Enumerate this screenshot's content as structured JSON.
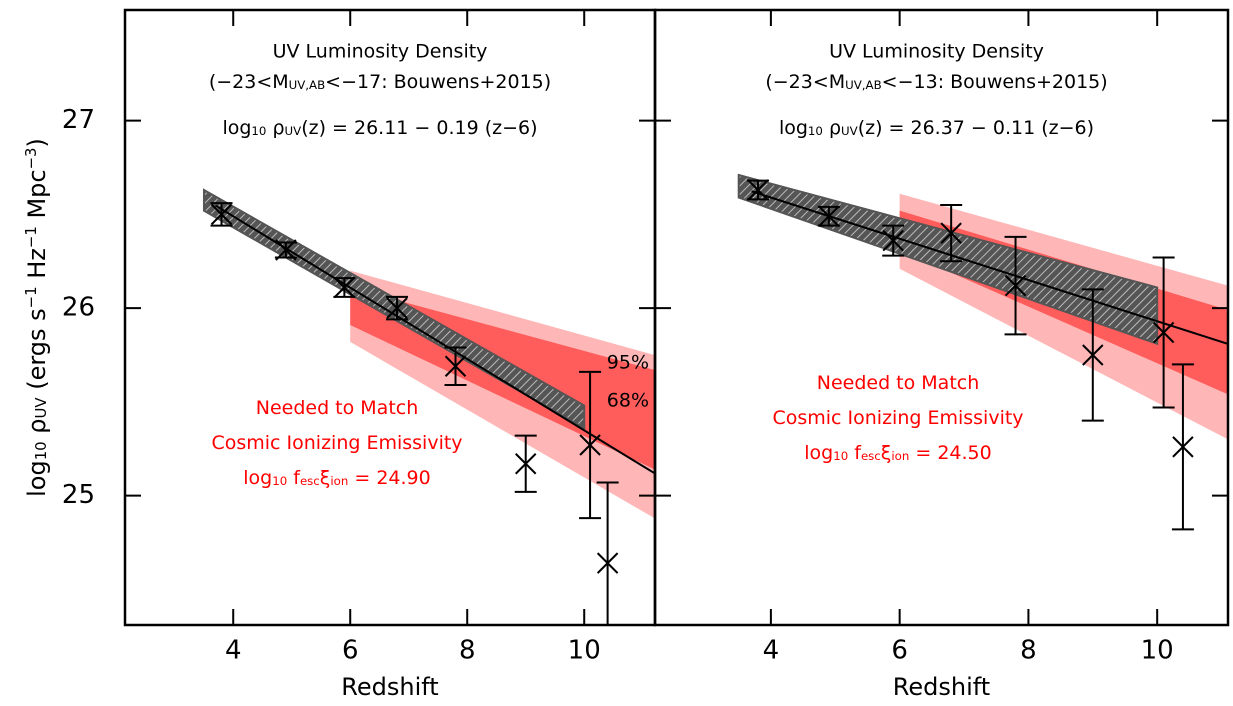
{
  "chart_data": [
    {
      "type": "scatter",
      "title": "UV Luminosity Density",
      "subtitle": [
        {
          "text": "(−23<M"
        },
        {
          "text": "UV,AB",
          "sub": true
        },
        {
          "text": "<−17: Bouwens+2015)"
        }
      ],
      "equation": [
        {
          "text": "log"
        },
        {
          "text": "10",
          "sub": true
        },
        {
          "text": " ρ"
        },
        {
          "text": "UV",
          "sub": true
        },
        {
          "text": "(z) = 26.11 − 0.19 (z−6)"
        }
      ],
      "annotation": [
        [
          {
            "text": "Needed to Match"
          }
        ],
        [
          {
            "text": "Cosmic Ionizing Emissivity"
          }
        ],
        [
          {
            "text": "log"
          },
          {
            "text": "10",
            "sub": true
          },
          {
            "text": " f"
          },
          {
            "text": "esc",
            "sub": true
          },
          {
            "text": "ξ"
          },
          {
            "text": "ion",
            "sub": true
          },
          {
            "text": " = 24.90"
          }
        ]
      ],
      "annotation_color": "#ff0000",
      "x_label": "Redshift",
      "y_label": [
        {
          "text": "log"
        },
        {
          "text": "10",
          "sub": true
        },
        {
          "text": " ρ"
        },
        {
          "text": "UV",
          "sub": true
        },
        {
          "text": " (ergs s"
        },
        {
          "text": "−1",
          "sup": true
        },
        {
          "text": " Hz"
        },
        {
          "text": "−1",
          "sup": true
        },
        {
          "text": " Mpc"
        },
        {
          "text": "−3",
          "sup": true
        },
        {
          "text": ")"
        }
      ],
      "xlim": [
        2.15,
        11.21
      ],
      "ylim": [
        24.31,
        27.59
      ],
      "xticks": [
        4,
        6,
        8,
        10
      ],
      "yticks": [
        25,
        26,
        27
      ],
      "red_bands": [
        {
          "label": "95%",
          "color": "#ffb6b6",
          "x": [
            6,
            11.2
          ],
          "upper": [
            26.2,
            25.75
          ],
          "lower": [
            25.82,
            24.88
          ]
        },
        {
          "label": "68%",
          "color": "#ff5c5c",
          "x": [
            6,
            11.2
          ],
          "upper": [
            26.11,
            25.67
          ],
          "lower": [
            25.91,
            25.14
          ]
        }
      ],
      "hatched_band": {
        "color": "#555555",
        "x": [
          3.5,
          10.0
        ],
        "upper": [
          26.63,
          25.48
        ],
        "lower": [
          26.52,
          25.36
        ]
      },
      "fit": {
        "color": "#000000",
        "x": [
          3.7,
          11.2
        ],
        "values": [
          26.547,
          25.12
        ]
      },
      "points": {
        "color": "#000000",
        "x": [
          3.8,
          4.9,
          5.9,
          6.8,
          7.8,
          9.0,
          10.1,
          10.4
        ],
        "values": [
          26.5,
          26.31,
          26.11,
          26.0,
          25.69,
          25.17,
          25.27,
          24.64
        ],
        "errors": [
          0.06,
          0.04,
          0.05,
          0.06,
          0.1,
          0.15,
          0.39,
          0.43
        ]
      }
    },
    {
      "type": "scatter",
      "title": "UV Luminosity Density",
      "subtitle": [
        {
          "text": "(−23<M"
        },
        {
          "text": "UV,AB",
          "sub": true
        },
        {
          "text": "<−13: Bouwens+2015)"
        }
      ],
      "equation": [
        {
          "text": "log"
        },
        {
          "text": "10",
          "sub": true
        },
        {
          "text": " ρ"
        },
        {
          "text": "UV",
          "sub": true
        },
        {
          "text": "(z) = 26.37 − 0.11 (z−6)"
        }
      ],
      "annotation": [
        [
          {
            "text": "Needed to Match"
          }
        ],
        [
          {
            "text": "Cosmic Ionizing Emissivity"
          }
        ],
        [
          {
            "text": "log"
          },
          {
            "text": "10",
            "sub": true
          },
          {
            "text": " f"
          },
          {
            "text": "esc",
            "sub": true
          },
          {
            "text": "ξ"
          },
          {
            "text": "ion",
            "sub": true
          },
          {
            "text": " = 24.50"
          }
        ]
      ],
      "annotation_color": "#ff0000",
      "x_label": "Redshift",
      "xlim": [
        2.2,
        11.1
      ],
      "ylim": [
        24.31,
        27.59
      ],
      "xticks": [
        4,
        6,
        8,
        10
      ],
      "yticks": [
        25,
        26,
        27
      ],
      "ytick_labels": false,
      "red_bands": [
        {
          "color": "#ffb6b6",
          "x": [
            6,
            11.1
          ],
          "upper": [
            26.61,
            26.12
          ],
          "lower": [
            26.21,
            25.3
          ]
        },
        {
          "color": "#ff5c5c",
          "x": [
            6,
            11.1
          ],
          "upper": [
            26.52,
            25.99
          ],
          "lower": [
            26.31,
            25.54
          ]
        }
      ],
      "hatched_band": {
        "color": "#555555",
        "x": [
          3.5,
          10.0
        ],
        "upper": [
          26.71,
          26.11
        ],
        "lower": [
          26.59,
          25.81
        ]
      },
      "fit": {
        "color": "#000000",
        "x": [
          3.7,
          11.1
        ],
        "values": [
          26.623,
          25.809
        ]
      },
      "points": {
        "color": "#000000",
        "x": [
          3.8,
          4.9,
          5.9,
          6.8,
          7.8,
          9.0,
          10.1,
          10.4
        ],
        "values": [
          26.63,
          26.49,
          26.36,
          26.4,
          26.12,
          25.75,
          25.87,
          25.26
        ],
        "errors": [
          0.05,
          0.05,
          0.08,
          0.15,
          0.26,
          0.35,
          0.4,
          0.44
        ]
      }
    }
  ]
}
